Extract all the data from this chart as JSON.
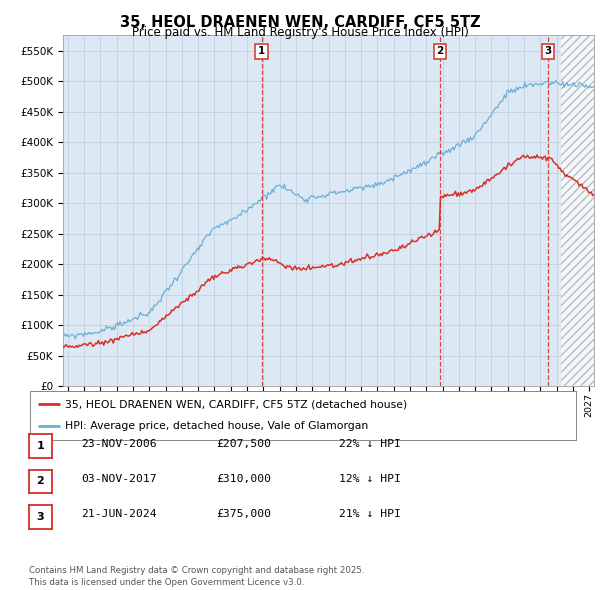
{
  "title1": "35, HEOL DRAENEN WEN, CARDIFF, CF5 5TZ",
  "title2": "Price paid vs. HM Land Registry's House Price Index (HPI)",
  "ylim": [
    0,
    575000
  ],
  "yticks": [
    0,
    50000,
    100000,
    150000,
    200000,
    250000,
    300000,
    350000,
    400000,
    450000,
    500000,
    550000
  ],
  "xlim_start": 1994.7,
  "xlim_end": 2027.3,
  "hpi_color": "#6baed6",
  "price_color": "#d73027",
  "vline_color": "#d73027",
  "bg_color": "#dce9f5",
  "plot_bg": "#ffffff",
  "grid_color": "#bbccdd",
  "hatch_start": 2025.3,
  "transactions": [
    {
      "num": 1,
      "date": "23-NOV-2006",
      "price": 207500,
      "hpi_diff": "22% ↓ HPI",
      "x_year": 2006.9
    },
    {
      "num": 2,
      "date": "03-NOV-2017",
      "price": 310000,
      "hpi_diff": "12% ↓ HPI",
      "x_year": 2017.84
    },
    {
      "num": 3,
      "date": "21-JUN-2024",
      "price": 375000,
      "hpi_diff": "21% ↓ HPI",
      "x_year": 2024.47
    }
  ],
  "legend_line1": "35, HEOL DRAENEN WEN, CARDIFF, CF5 5TZ (detached house)",
  "legend_line2": "HPI: Average price, detached house, Vale of Glamorgan",
  "copyright": "Contains HM Land Registry data © Crown copyright and database right 2025.\nThis data is licensed under the Open Government Licence v3.0."
}
